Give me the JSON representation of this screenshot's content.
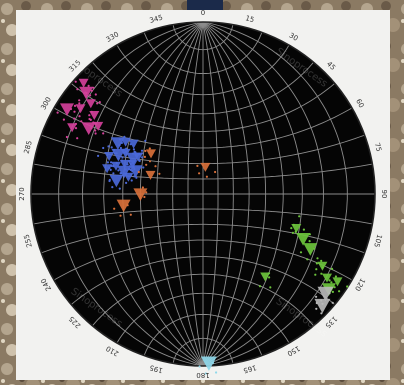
{
  "stereonet": {
    "azimuth_labels": [
      {
        "deg": 0,
        "text": "0"
      },
      {
        "deg": 15,
        "text": "15"
      },
      {
        "deg": 30,
        "text": "30"
      },
      {
        "deg": 45,
        "text": "45"
      },
      {
        "deg": 60,
        "text": "60"
      },
      {
        "deg": 75,
        "text": "75"
      },
      {
        "deg": 90,
        "text": "90"
      },
      {
        "deg": 105,
        "text": "105"
      },
      {
        "deg": 120,
        "text": "120"
      },
      {
        "deg": 135,
        "text": "135"
      },
      {
        "deg": 150,
        "text": "150"
      },
      {
        "deg": 165,
        "text": "165"
      },
      {
        "deg": 180,
        "text": "180"
      },
      {
        "deg": 195,
        "text": "195"
      },
      {
        "deg": 210,
        "text": "210"
      },
      {
        "deg": 225,
        "text": "225"
      },
      {
        "deg": 240,
        "text": "240"
      },
      {
        "deg": 255,
        "text": "255"
      },
      {
        "deg": 270,
        "text": "270"
      },
      {
        "deg": 285,
        "text": "285"
      },
      {
        "deg": 300,
        "text": "300"
      },
      {
        "deg": 315,
        "text": "315"
      },
      {
        "deg": 330,
        "text": "330"
      },
      {
        "deg": 345,
        "text": "345"
      }
    ],
    "grid_interval_deg": 10,
    "colors": {
      "background": "#050505",
      "grid": "#8c8c8c",
      "outline": "#222222",
      "magenta": "#d4409a",
      "blue": "#4a68d8",
      "green": "#6cc43c",
      "gray": "#b8b8b8",
      "cyan": "#8fd8ea",
      "orange": "#d8703a"
    },
    "clusters": [
      {
        "name": "magenta",
        "color": "#d4409a",
        "poles": [
          {
            "trend": 302,
            "plunge": 4
          },
          {
            "trend": 305,
            "plunge": 8
          },
          {
            "trend": 309,
            "plunge": 10
          },
          {
            "trend": 311,
            "plunge": 6
          },
          {
            "trend": 313,
            "plunge": 3
          },
          {
            "trend": 306,
            "plunge": 14
          },
          {
            "trend": 300,
            "plunge": 15
          },
          {
            "trend": 297,
            "plunge": 9
          },
          {
            "trend": 303,
            "plunge": 18
          }
        ]
      },
      {
        "name": "blue",
        "color": "#4a68d8",
        "poles": [
          {
            "trend": 301,
            "plunge": 30
          },
          {
            "trend": 304,
            "plunge": 33
          },
          {
            "trend": 298,
            "plunge": 36
          },
          {
            "trend": 295,
            "plunge": 33
          },
          {
            "trend": 291,
            "plunge": 38
          },
          {
            "trend": 293,
            "plunge": 42
          },
          {
            "trend": 297,
            "plunge": 41
          },
          {
            "trend": 300,
            "plunge": 43
          },
          {
            "trend": 288,
            "plunge": 34
          },
          {
            "trend": 286,
            "plunge": 39
          },
          {
            "trend": 283,
            "plunge": 42
          },
          {
            "trend": 306,
            "plunge": 37
          },
          {
            "trend": 289,
            "plunge": 45
          },
          {
            "trend": 292,
            "plunge": 29
          },
          {
            "trend": 285,
            "plunge": 30
          },
          {
            "trend": 279,
            "plunge": 36
          }
        ]
      },
      {
        "name": "green",
        "color": "#6cc43c",
        "poles": [
          {
            "trend": 117,
            "plunge": 20
          },
          {
            "trend": 121,
            "plunge": 12
          },
          {
            "trend": 124,
            "plunge": 8
          },
          {
            "trend": 127,
            "plunge": 5
          },
          {
            "trend": 123,
            "plunge": 4
          },
          {
            "trend": 110,
            "plunge": 30
          },
          {
            "trend": 114,
            "plunge": 25
          },
          {
            "trend": 143,
            "plunge": 28
          }
        ]
      },
      {
        "name": "gray",
        "color": "#b8b8b8",
        "poles": [
          {
            "trend": 129,
            "plunge": 5
          },
          {
            "trend": 133,
            "plunge": 3
          }
        ]
      },
      {
        "name": "cyan",
        "color": "#8fd8ea",
        "poles": [
          {
            "trend": 178,
            "plunge": 1
          }
        ]
      },
      {
        "name": "orange",
        "color": "#d8703a",
        "poles": [
          {
            "trend": 262,
            "plunge": 40
          },
          {
            "trend": 308,
            "plunge": 48
          },
          {
            "trend": 290,
            "plunge": 54
          },
          {
            "trend": 270,
            "plunge": 50
          },
          {
            "trend": 5,
            "plunge": 72
          }
        ]
      }
    ],
    "watermark_text": "Sinoprocess"
  }
}
